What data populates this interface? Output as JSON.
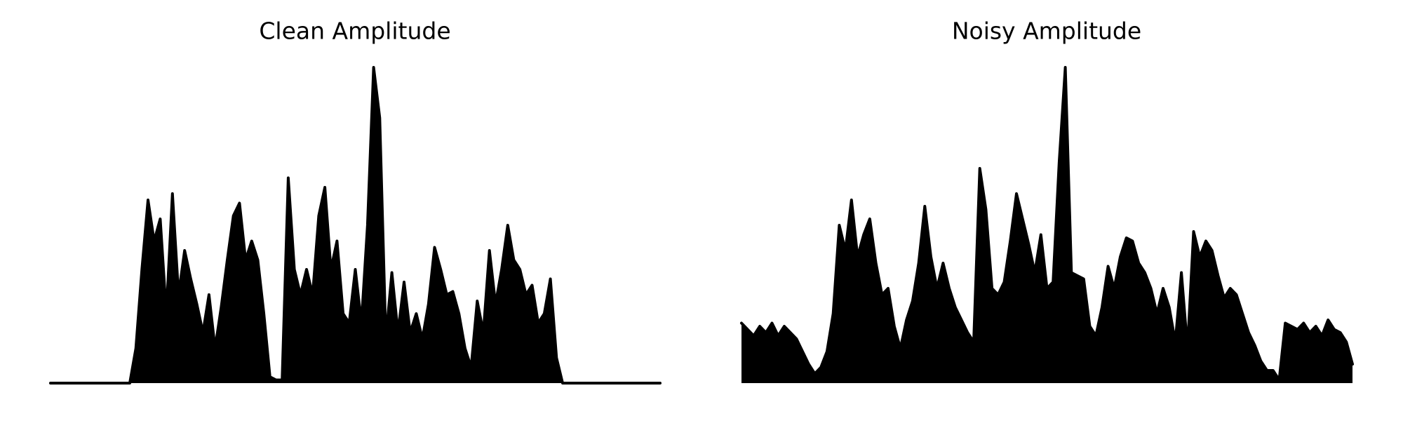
{
  "chart_data": [
    {
      "type": "area",
      "title": "Clean Amplitude",
      "color": "#000000",
      "ylim": [
        0,
        100
      ],
      "values": [
        0,
        0,
        0,
        0,
        0,
        0,
        0,
        0,
        0,
        0,
        0,
        0,
        0,
        0,
        11,
        36,
        58,
        45,
        52,
        22,
        60,
        28,
        42,
        33,
        25,
        16,
        28,
        11,
        24,
        39,
        53,
        57,
        39,
        45,
        39,
        22,
        2,
        1,
        1,
        65,
        36,
        28,
        36,
        28,
        53,
        62,
        36,
        45,
        22,
        19,
        36,
        19,
        50,
        100,
        84,
        14,
        35,
        16,
        32,
        16,
        22,
        14,
        25,
        43,
        36,
        28,
        29,
        22,
        11,
        5,
        26,
        16,
        42,
        25,
        36,
        50,
        39,
        36,
        28,
        31,
        19,
        22,
        33,
        8,
        0,
        0,
        0,
        0,
        0,
        0,
        0,
        0,
        0,
        0,
        0,
        0,
        0,
        0,
        0,
        0,
        0
      ]
    },
    {
      "type": "area",
      "title": "Noisy Amplitude",
      "color": "#000000",
      "ylim": [
        0,
        100
      ],
      "values": [
        19,
        17,
        15,
        18,
        16,
        19,
        15,
        18,
        16,
        14,
        10,
        6,
        3,
        5,
        10,
        22,
        50,
        42,
        58,
        40,
        47,
        52,
        38,
        28,
        30,
        18,
        11,
        20,
        26,
        38,
        56,
        40,
        30,
        38,
        30,
        24,
        20,
        16,
        13,
        68,
        55,
        30,
        28,
        32,
        45,
        60,
        52,
        44,
        35,
        47,
        30,
        32,
        70,
        100,
        35,
        34,
        33,
        18,
        15,
        24,
        37,
        30,
        40,
        46,
        45,
        38,
        35,
        30,
        22,
        30,
        24,
        13,
        35,
        11,
        48,
        40,
        45,
        42,
        34,
        27,
        30,
        28,
        22,
        16,
        12,
        7,
        4,
        4,
        1,
        19,
        18,
        17,
        19,
        16,
        18,
        15,
        20,
        17,
        16,
        13,
        6
      ]
    }
  ]
}
